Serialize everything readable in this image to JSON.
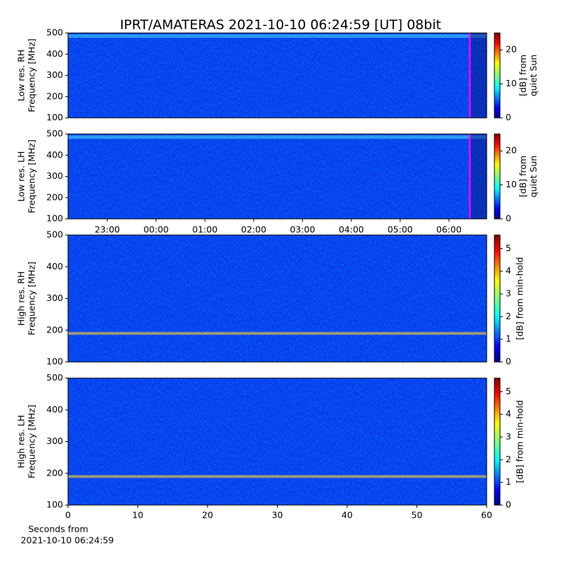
{
  "title": "IPRT/AMATERAS 2021-10-10 06:24:59 [UT]   08bit",
  "chart_data": [
    {
      "type": "heatmap",
      "ylabel": [
        "Low res. RH",
        "Frequency [MHz]"
      ],
      "ylim": [
        100,
        500
      ],
      "yticks": [
        100,
        200,
        300,
        400,
        500
      ],
      "clim": [
        0,
        25
      ],
      "cticks": [
        0,
        10,
        20
      ],
      "clabel": [
        "[dB] from",
        "quiet Sun"
      ]
    },
    {
      "type": "heatmap",
      "ylabel": [
        "Low res. LH",
        "Frequency [MHz]"
      ],
      "ylim": [
        100,
        500
      ],
      "yticks": [
        100,
        200,
        300,
        400,
        500
      ],
      "clim": [
        0,
        25
      ],
      "cticks": [
        0,
        10,
        20
      ],
      "clabel": [
        "[dB] from",
        "quiet Sun"
      ],
      "xticks": [
        "23:00",
        "00:00",
        "01:00",
        "02:00",
        "03:00",
        "04:00",
        "05:00",
        "06:00"
      ]
    },
    {
      "type": "heatmap",
      "ylabel": [
        "High res. RH",
        "Frequency [MHz]"
      ],
      "ylim": [
        100,
        500
      ],
      "yticks": [
        100,
        200,
        300,
        400,
        500
      ],
      "clim": [
        0,
        5.6
      ],
      "cticks": [
        0,
        1,
        2,
        3,
        4,
        5
      ],
      "clabel": [
        "[dB] from min-hold"
      ]
    },
    {
      "type": "heatmap",
      "ylabel": [
        "High res. LH",
        "Frequency [MHz]"
      ],
      "ylim": [
        100,
        500
      ],
      "yticks": [
        100,
        200,
        300,
        400,
        500
      ],
      "clim": [
        0,
        5.6
      ],
      "cticks": [
        0,
        1,
        2,
        3,
        4,
        5
      ],
      "clabel": [
        "[dB] from min-hold"
      ],
      "xlim": [
        0,
        60
      ],
      "xticks": [
        0,
        10,
        20,
        30,
        40,
        50,
        60
      ],
      "xlabel": [
        "Seconds from",
        "2021-10-10 06:24:59"
      ]
    }
  ]
}
